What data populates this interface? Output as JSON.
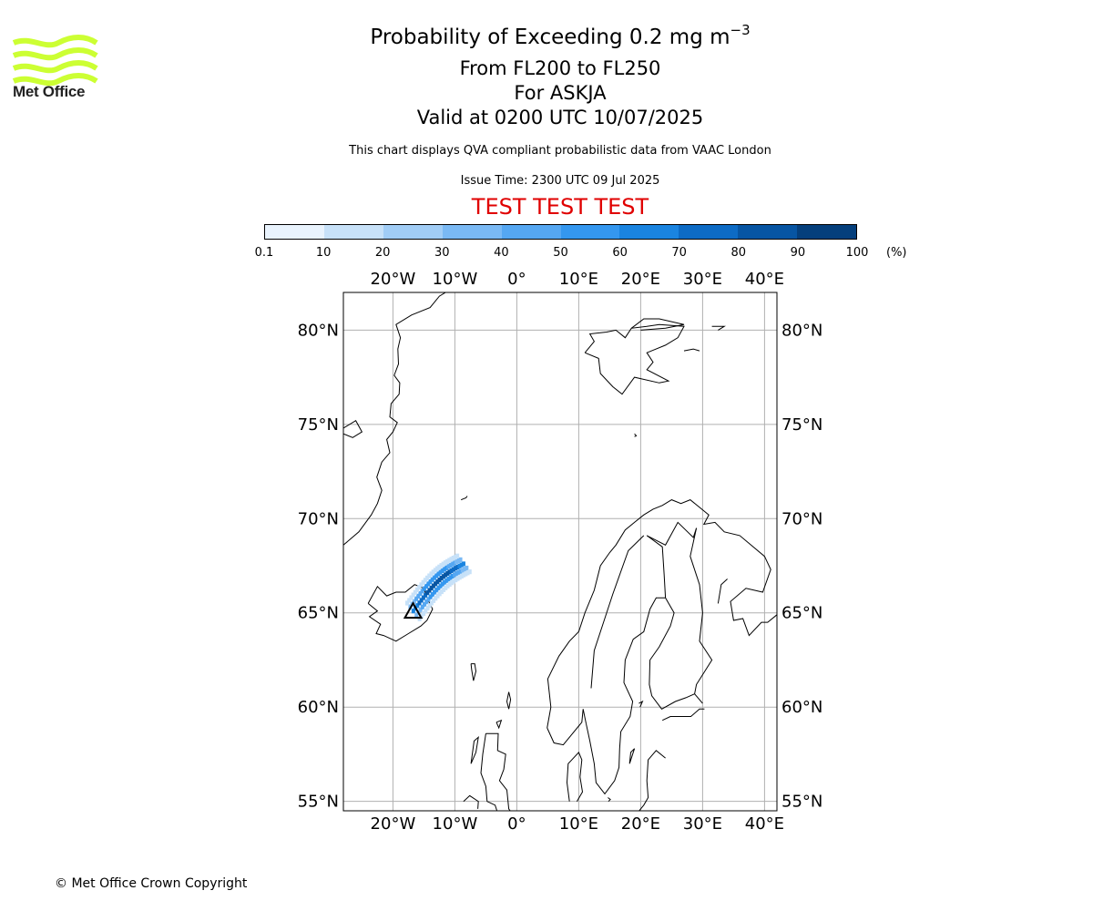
{
  "branding": {
    "logo_text": "Met Office",
    "logo_color": "#ccff33"
  },
  "header": {
    "title_prefix": "Probability of Exceeding 0.2 mg m",
    "title_exponent": "−3",
    "level_range": "From FL200 to FL250",
    "volcano": "For ASKJA",
    "valid_time": "Valid at 0200 UTC 10/07/2025",
    "description": "This chart displays QVA compliant probabilistic data from VAAC London",
    "issue_time": "Issue Time: 2300 UTC 09 Jul 2025",
    "test_banner": "TEST TEST TEST",
    "test_banner_color": "#e00000"
  },
  "colorbar": {
    "ticks": [
      "0.1",
      "10",
      "20",
      "30",
      "40",
      "50",
      "60",
      "70",
      "80",
      "90",
      "100"
    ],
    "unit": "(%)",
    "colors": [
      "#e9f3fd",
      "#c7e1f8",
      "#a1cdf6",
      "#7ab9f4",
      "#55a7f2",
      "#3497ef",
      "#1a84e0",
      "#0d6bc5",
      "#0755a3",
      "#053f7c",
      "#052b58"
    ]
  },
  "map": {
    "type": "map",
    "projection": "plate-carree",
    "lon_range": [
      -28,
      42
    ],
    "lat_range": [
      54.5,
      82
    ],
    "lon_ticks": [
      "20°W",
      "10°W",
      "0°",
      "10°E",
      "20°E",
      "30°E",
      "40°E"
    ],
    "lon_tick_values": [
      -20,
      -10,
      0,
      10,
      20,
      30,
      40
    ],
    "lat_ticks": [
      "80°N",
      "75°N",
      "70°N",
      "65°N",
      "60°N",
      "55°N"
    ],
    "lat_tick_values": [
      80,
      75,
      70,
      65,
      60,
      55
    ],
    "grid": true,
    "volcano_marker": {
      "name": "ASKJA",
      "lon": -16.75,
      "lat": 65.03,
      "symbol": "triangle"
    },
    "plume_color": "#0d6bc5"
  },
  "footer": {
    "copyright": "© Met Office Crown Copyright"
  }
}
